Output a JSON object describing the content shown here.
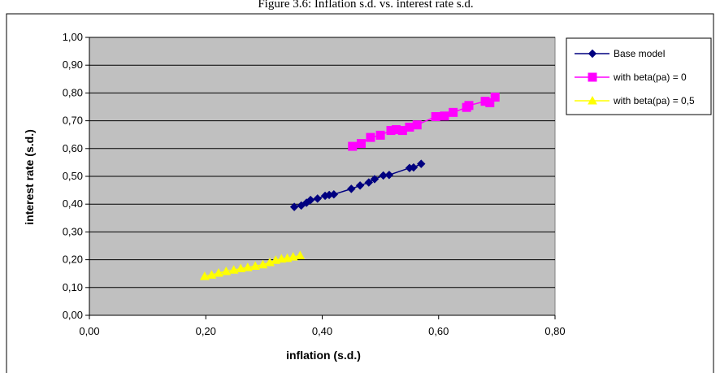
{
  "chart_data": {
    "type": "scatter",
    "title": "Figure 3.6: Inflation s.d. vs. interest rate s.d.",
    "xlabel": "inflation (s.d.)",
    "ylabel": "interest rate (s.d.)",
    "xlim": [
      0,
      0.8
    ],
    "ylim": [
      0,
      1.0
    ],
    "x_ticks": [
      "0,00",
      "0,20",
      "0,40",
      "0,60",
      "0,80"
    ],
    "y_ticks": [
      "0,00",
      "0,10",
      "0,20",
      "0,30",
      "0,40",
      "0,50",
      "0,60",
      "0,70",
      "0,80",
      "0,90",
      "1,00"
    ],
    "grid": "horizontal",
    "legend_position": "right",
    "series": [
      {
        "name": "Base model",
        "color": "#000080",
        "marker": "diamond",
        "points": [
          [
            0.352,
            0.39
          ],
          [
            0.364,
            0.395
          ],
          [
            0.373,
            0.405
          ],
          [
            0.38,
            0.415
          ],
          [
            0.392,
            0.42
          ],
          [
            0.405,
            0.43
          ],
          [
            0.412,
            0.433
          ],
          [
            0.42,
            0.435
          ],
          [
            0.45,
            0.455
          ],
          [
            0.465,
            0.467
          ],
          [
            0.48,
            0.478
          ],
          [
            0.49,
            0.49
          ],
          [
            0.505,
            0.503
          ],
          [
            0.515,
            0.505
          ],
          [
            0.55,
            0.53
          ],
          [
            0.557,
            0.532
          ],
          [
            0.57,
            0.545
          ]
        ]
      },
      {
        "name": "with beta(pa)  = 0",
        "color": "#ff00ff",
        "marker": "square",
        "points": [
          [
            0.452,
            0.608
          ],
          [
            0.467,
            0.618
          ],
          [
            0.483,
            0.64
          ],
          [
            0.5,
            0.648
          ],
          [
            0.518,
            0.665
          ],
          [
            0.527,
            0.668
          ],
          [
            0.538,
            0.665
          ],
          [
            0.55,
            0.677
          ],
          [
            0.563,
            0.685
          ],
          [
            0.595,
            0.715
          ],
          [
            0.61,
            0.717
          ],
          [
            0.625,
            0.73
          ],
          [
            0.648,
            0.748
          ],
          [
            0.652,
            0.755
          ],
          [
            0.68,
            0.77
          ],
          [
            0.688,
            0.765
          ],
          [
            0.697,
            0.785
          ]
        ]
      },
      {
        "name": "with beta(pa)  = 0,5",
        "color": "#ffff00",
        "marker": "triangle",
        "points": [
          [
            0.198,
            0.14
          ],
          [
            0.21,
            0.145
          ],
          [
            0.222,
            0.152
          ],
          [
            0.235,
            0.158
          ],
          [
            0.248,
            0.163
          ],
          [
            0.26,
            0.168
          ],
          [
            0.272,
            0.172
          ],
          [
            0.285,
            0.177
          ],
          [
            0.298,
            0.182
          ],
          [
            0.31,
            0.19
          ],
          [
            0.32,
            0.198
          ],
          [
            0.33,
            0.203
          ],
          [
            0.34,
            0.205
          ],
          [
            0.35,
            0.21
          ],
          [
            0.362,
            0.215
          ]
        ]
      }
    ]
  }
}
